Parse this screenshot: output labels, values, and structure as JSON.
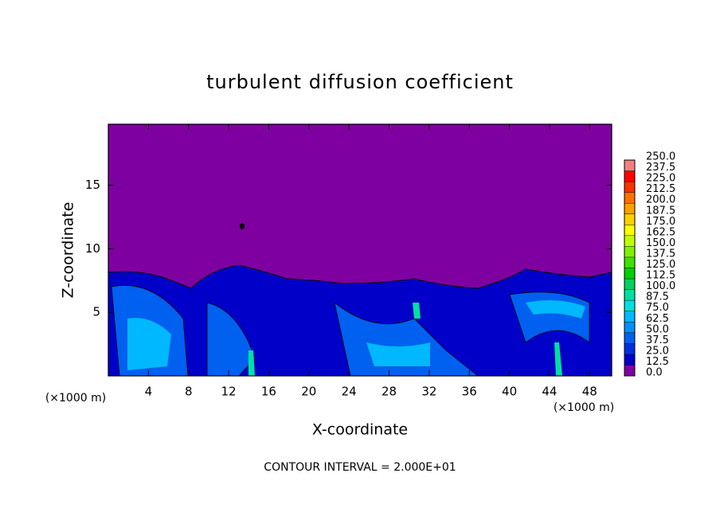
{
  "chart_data": {
    "type": "contour",
    "title": "turbulent diffusion coefficient",
    "xlabel": "X-coordinate",
    "ylabel": "Z-coordinate",
    "x_unit": "(×1000 m)",
    "y_unit": "(×1000 m)",
    "footnote": "CONTOUR INTERVAL = 2.000E+01",
    "xlim": [
      0,
      50.2
    ],
    "ylim": [
      0,
      19.8
    ],
    "xticks": [
      4,
      8,
      12,
      16,
      20,
      24,
      28,
      32,
      36,
      40,
      44,
      48
    ],
    "yticks": [
      5,
      10,
      15
    ],
    "colorbar": {
      "ticks": [
        {
          "value": 0,
          "label": "0.0"
        },
        {
          "value": 12.5,
          "label": "12.5"
        },
        {
          "value": 25,
          "label": "25.0"
        },
        {
          "value": 37.5,
          "label": "37.5"
        },
        {
          "value": 50,
          "label": "50.0"
        },
        {
          "value": 62.5,
          "label": "62.5"
        },
        {
          "value": 75,
          "label": "75.0"
        },
        {
          "value": 87.5,
          "label": "87.5"
        },
        {
          "value": 100,
          "label": "100.0"
        },
        {
          "value": 112.5,
          "label": "112.5"
        },
        {
          "value": 125,
          "label": "125.0"
        },
        {
          "value": 137.5,
          "label": "137.5"
        },
        {
          "value": 150,
          "label": "150.0"
        },
        {
          "value": 162.5,
          "label": "162.5"
        },
        {
          "value": 175,
          "label": "175.0"
        },
        {
          "value": 187.5,
          "label": "187.5"
        },
        {
          "value": 200,
          "label": "200.0"
        },
        {
          "value": 212.5,
          "label": "212.5"
        },
        {
          "value": 225,
          "label": "225.0"
        },
        {
          "value": 237.5,
          "label": "237.5"
        },
        {
          "value": 250,
          "label": "250.0"
        }
      ],
      "colors": [
        "#7f00a0",
        "#0000c8",
        "#0030e0",
        "#0060f0",
        "#0090ff",
        "#00b8ff",
        "#00e0e0",
        "#00e0a0",
        "#00d060",
        "#00d000",
        "#40e000",
        "#80f000",
        "#c0ff00",
        "#ffff00",
        "#ffd000",
        "#ffa000",
        "#ff7000",
        "#ff3000",
        "#ff0000",
        "#f08080"
      ]
    }
  }
}
